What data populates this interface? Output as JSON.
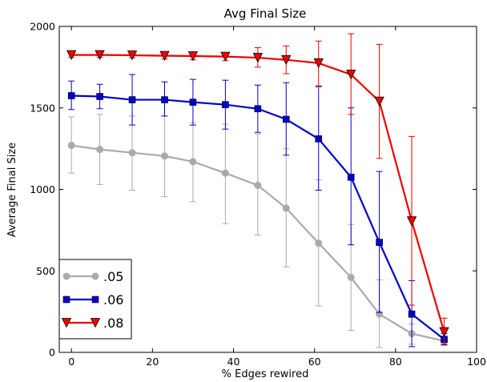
{
  "chart_data": {
    "type": "line",
    "title": "Avg Final Size",
    "xlabel": "% Edges rewired",
    "ylabel": "Average Final Size",
    "xlim": [
      -3,
      100
    ],
    "ylim": [
      0,
      2000
    ],
    "xticks": [
      0,
      20,
      40,
      60,
      80,
      100
    ],
    "yticks": [
      0,
      500,
      1000,
      1500,
      2000
    ],
    "grid": false,
    "legend_position": "bottom-left",
    "x": [
      0,
      7,
      15,
      23,
      30,
      38,
      46,
      53,
      61,
      69,
      76,
      84,
      92
    ],
    "series": [
      {
        "name": ".05",
        "color": "#aaaaaa",
        "marker": "circle",
        "values": [
          1270,
          1245,
          1225,
          1205,
          1170,
          1100,
          1025,
          885,
          670,
          460,
          235,
          115,
          70
        ],
        "err_low": [
          1100,
          1030,
          995,
          955,
          925,
          790,
          720,
          525,
          285,
          135,
          30,
          50,
          45
        ],
        "err_high": [
          1445,
          1460,
          1450,
          1450,
          1410,
          1400,
          1340,
          1250,
          1060,
          785,
          445,
          175,
          95
        ]
      },
      {
        "name": ".06",
        "color": "#0000cc",
        "marker": "square",
        "values": [
          1575,
          1570,
          1550,
          1550,
          1535,
          1520,
          1495,
          1430,
          1310,
          1075,
          675,
          235,
          80
        ],
        "err_low": [
          1490,
          1495,
          1395,
          1450,
          1395,
          1370,
          1350,
          1210,
          995,
          660,
          245,
          35,
          45
        ],
        "err_high": [
          1665,
          1645,
          1705,
          1660,
          1675,
          1670,
          1640,
          1655,
          1635,
          1500,
          1110,
          440,
          115
        ]
      },
      {
        "name": ".08",
        "color": "#ee0000",
        "marker": "triangle-down",
        "values": [
          1825,
          1825,
          1823,
          1820,
          1818,
          1815,
          1808,
          1795,
          1775,
          1705,
          1540,
          805,
          125
        ],
        "err_low": [
          1810,
          1810,
          1808,
          1800,
          1795,
          1790,
          1750,
          1710,
          1630,
          1460,
          1190,
          290,
          50
        ],
        "err_high": [
          1840,
          1840,
          1840,
          1840,
          1840,
          1840,
          1870,
          1880,
          1910,
          1955,
          1890,
          1325,
          210
        ]
      }
    ]
  }
}
